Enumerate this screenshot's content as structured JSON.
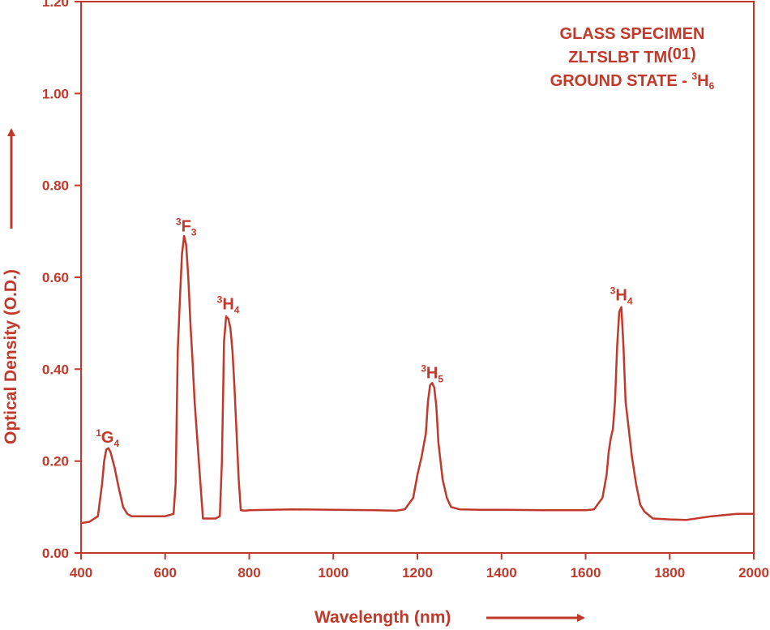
{
  "colors": {
    "accent": "#c0392b"
  },
  "chart_data": {
    "type": "line",
    "xlabel": "Wavelength (nm)",
    "ylabel": "Optical Density (O.D.)",
    "xlim": [
      400,
      2000
    ],
    "ylim": [
      0,
      1.2
    ],
    "x_ticks": [
      400,
      600,
      800,
      1000,
      1200,
      1400,
      1600,
      1800,
      2000
    ],
    "x_tick_labels": [
      "400",
      "600",
      "800",
      "1000",
      "1200",
      "1400",
      "1600",
      "1800",
      "2000"
    ],
    "y_ticks": [
      0,
      0.2,
      0.4,
      0.6,
      0.8,
      1.0,
      1.2
    ],
    "y_tick_labels": [
      "0.00",
      "0.20",
      "0.40",
      "0.60",
      "0.80",
      "1.00",
      "1.20"
    ],
    "grid": false,
    "legend": {
      "placement": "top-right",
      "line1": "GLASS SPECIMEN",
      "line2_main": "ZLTSLBT TM",
      "line2_suffix": "(01)",
      "line3_main": "GROUND STATE - ",
      "line3_sup": "3",
      "line3_letter": "H",
      "line3_sub": "6"
    },
    "annotations": [
      {
        "id": "g4",
        "x": 463,
        "y": 0.24,
        "sup": "1",
        "letter": "G",
        "sub": "4"
      },
      {
        "id": "f3",
        "x": 650,
        "y": 0.7,
        "sup": "3",
        "letter": "F",
        "sub": "3"
      },
      {
        "id": "h4a",
        "x": 750,
        "y": 0.53,
        "sup": "3",
        "letter": "H",
        "sub": "4"
      },
      {
        "id": "h5",
        "x": 1235,
        "y": 0.38,
        "sup": "3",
        "letter": "H",
        "sub": "5"
      },
      {
        "id": "h4b",
        "x": 1685,
        "y": 0.55,
        "sup": "3",
        "letter": "H",
        "sub": "4"
      }
    ],
    "series": [
      {
        "x": [
          400,
          420,
          440,
          450,
          455,
          460,
          465,
          470,
          480,
          490,
          500,
          510,
          520,
          540,
          560,
          580,
          600,
          620,
          625,
          630,
          635,
          640,
          645,
          650,
          655,
          660,
          665,
          670,
          680,
          690,
          700,
          710,
          720,
          730,
          735,
          740,
          745,
          750,
          755,
          760,
          765,
          770,
          775,
          780,
          790,
          800,
          900,
          1000,
          1100,
          1150,
          1170,
          1190,
          1200,
          1210,
          1220,
          1225,
          1230,
          1235,
          1240,
          1245,
          1250,
          1260,
          1270,
          1280,
          1300,
          1350,
          1400,
          1500,
          1580,
          1600,
          1620,
          1640,
          1650,
          1655,
          1660,
          1665,
          1670,
          1675,
          1680,
          1685,
          1690,
          1695,
          1700,
          1710,
          1720,
          1730,
          1740,
          1760,
          1800,
          1840,
          1900,
          1960,
          2000
        ],
        "y": [
          0.065,
          0.068,
          0.08,
          0.15,
          0.2,
          0.225,
          0.228,
          0.22,
          0.185,
          0.14,
          0.1,
          0.085,
          0.08,
          0.08,
          0.08,
          0.08,
          0.08,
          0.085,
          0.15,
          0.44,
          0.55,
          0.65,
          0.69,
          0.67,
          0.6,
          0.5,
          0.42,
          0.33,
          0.2,
          0.075,
          0.075,
          0.075,
          0.075,
          0.08,
          0.2,
          0.46,
          0.515,
          0.51,
          0.49,
          0.44,
          0.36,
          0.26,
          0.16,
          0.093,
          0.092,
          0.093,
          0.095,
          0.094,
          0.093,
          0.092,
          0.095,
          0.12,
          0.17,
          0.21,
          0.26,
          0.33,
          0.365,
          0.37,
          0.36,
          0.32,
          0.24,
          0.16,
          0.12,
          0.1,
          0.095,
          0.094,
          0.094,
          0.093,
          0.093,
          0.093,
          0.095,
          0.12,
          0.17,
          0.22,
          0.25,
          0.27,
          0.33,
          0.45,
          0.525,
          0.535,
          0.45,
          0.33,
          0.29,
          0.21,
          0.15,
          0.105,
          0.09,
          0.075,
          0.073,
          0.072,
          0.08,
          0.085,
          0.085
        ]
      }
    ]
  }
}
